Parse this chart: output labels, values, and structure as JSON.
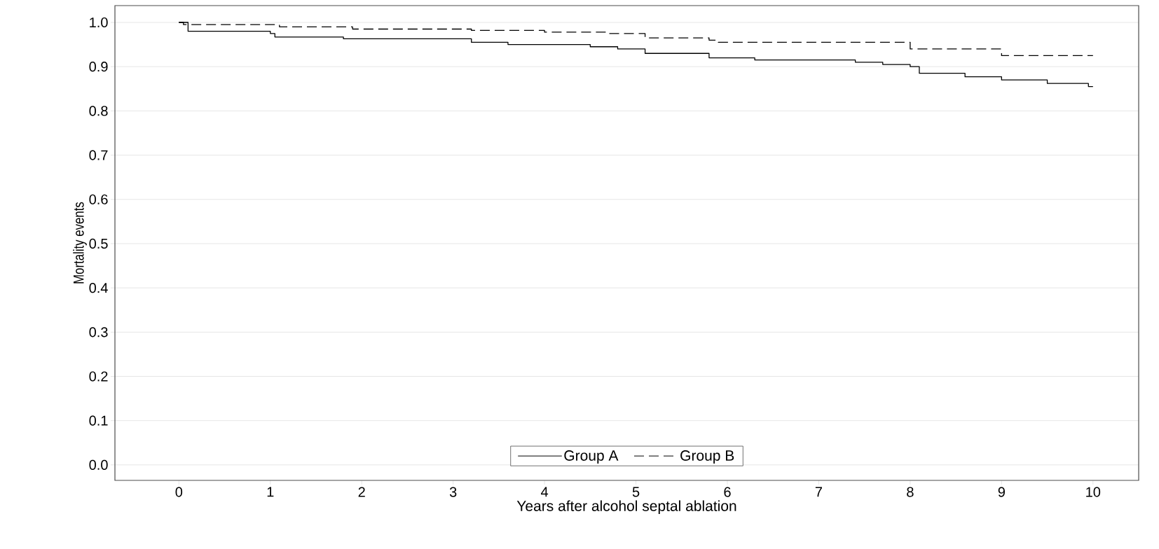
{
  "chart_data": {
    "type": "step",
    "xlabel": "Years after alcohol septal ablation",
    "ylabel": "Mortality events",
    "xlim": [
      -0.7,
      10.5
    ],
    "ylim": [
      -0.035,
      1.038
    ],
    "xticks": [
      0,
      1,
      2,
      3,
      4,
      5,
      6,
      7,
      8,
      9,
      10
    ],
    "yticks": [
      {
        "value": 0,
        "label": "0.0"
      },
      0.1,
      0.2,
      0.3,
      0.4,
      0.5,
      0.6,
      0.7,
      0.8,
      0.9,
      {
        "value": 1,
        "label": "1.0"
      }
    ],
    "grid": "y",
    "legend": "bottom",
    "series": [
      {
        "name": "Group A",
        "color": "#000000",
        "line_style": "solid",
        "x": [
          0,
          0.1,
          1.0,
          1.05,
          1.8,
          3.2,
          3.6,
          4.5,
          4.8,
          5.1,
          5.8,
          6.3,
          7.4,
          7.7,
          8.0,
          8.1,
          8.6,
          9.0,
          9.5,
          9.95,
          10
        ],
        "values": [
          1.0,
          0.98,
          0.975,
          0.967,
          0.963,
          0.955,
          0.95,
          0.945,
          0.94,
          0.93,
          0.92,
          0.915,
          0.91,
          0.905,
          0.9,
          0.885,
          0.877,
          0.87,
          0.862,
          0.855,
          0.855
        ]
      },
      {
        "name": "Group B",
        "color": "#000000",
        "line_style": "dashed",
        "x": [
          0,
          0.05,
          1.1,
          1.9,
          3.2,
          4.0,
          4.7,
          5.1,
          5.8,
          5.9,
          8.0,
          9.0,
          10
        ],
        "values": [
          1.0,
          0.995,
          0.99,
          0.985,
          0.982,
          0.978,
          0.975,
          0.965,
          0.96,
          0.955,
          0.94,
          0.925,
          0.925
        ]
      }
    ]
  }
}
